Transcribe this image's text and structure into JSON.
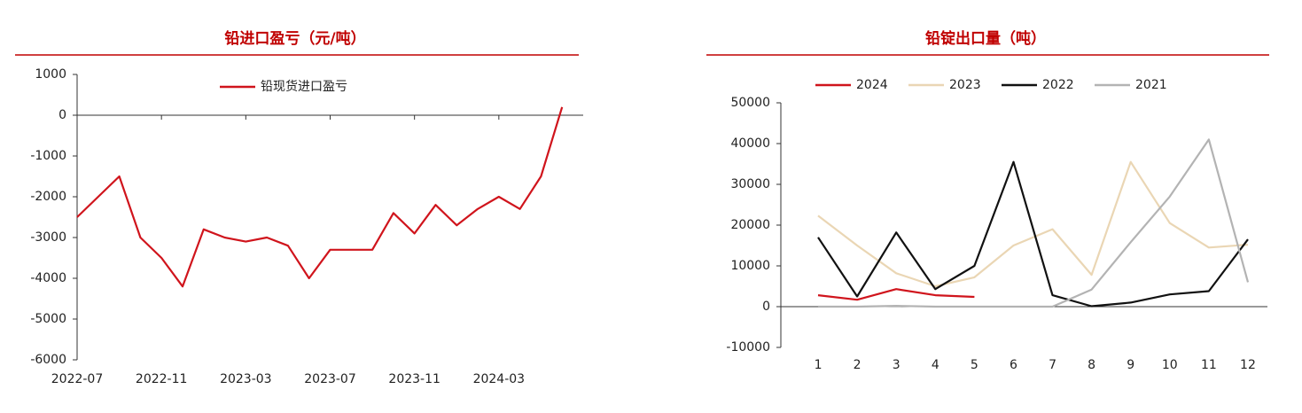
{
  "chart_data": [
    {
      "type": "line",
      "title": "铅进口盈亏（元/吨）",
      "x": [
        "2022-07",
        "2022-08",
        "2022-09",
        "2022-10",
        "2022-11",
        "2022-12",
        "2023-01",
        "2023-02",
        "2023-03",
        "2023-04",
        "2023-05",
        "2023-06",
        "2023-07",
        "2023-08",
        "2023-09",
        "2023-10",
        "2023-11",
        "2023-12",
        "2024-01",
        "2024-02",
        "2024-03",
        "2024-04",
        "2024-05",
        "2024-06"
      ],
      "series": [
        {
          "name": "铅现货进口盈亏",
          "color": "#d0141c",
          "values": [
            -2500,
            -2000,
            -1500,
            -3000,
            -3500,
            -4200,
            -2800,
            -3000,
            -3100,
            -3000,
            -3200,
            -4000,
            -3300,
            -3300,
            -3300,
            -2400,
            -2900,
            -2200,
            -2700,
            -2300,
            -2000,
            -2300,
            -1500,
            200
          ]
        }
      ],
      "xlim": [
        "2022-07",
        "2024-07"
      ],
      "xticks": [
        "2022-07",
        "2022-11",
        "2023-03",
        "2023-07",
        "2023-11",
        "2024-03"
      ],
      "ylim": [
        -6000,
        1000
      ],
      "yticks": [
        1000,
        0,
        -1000,
        -2000,
        -3000,
        -4000,
        -5000,
        -6000
      ],
      "legend": "top"
    },
    {
      "type": "line",
      "title": "铅锭出口量（吨）",
      "categories": [
        "1",
        "2",
        "3",
        "4",
        "5",
        "6",
        "7",
        "8",
        "9",
        "10",
        "11",
        "12"
      ],
      "series": [
        {
          "name": "2024",
          "color": "#d0141c",
          "values": [
            2800,
            1700,
            4300,
            2800,
            2400,
            null,
            null,
            null,
            null,
            null,
            null,
            null
          ]
        },
        {
          "name": "2023",
          "color": "#ead6b4",
          "values": [
            22300,
            15000,
            8200,
            5000,
            7200,
            15000,
            19000,
            7800,
            35500,
            20500,
            14500,
            15200
          ]
        },
        {
          "name": "2022",
          "color": "#111111",
          "values": [
            17000,
            2500,
            18200,
            4300,
            10000,
            35500,
            2800,
            100,
            1000,
            3000,
            3800,
            16500
          ]
        },
        {
          "name": "2021",
          "color": "#b3b3b3",
          "values": [
            0,
            0,
            200,
            0,
            0,
            0,
            0,
            4200,
            15800,
            27000,
            41000,
            6000
          ]
        }
      ],
      "ylim": [
        -10000,
        50000
      ],
      "yticks": [
        50000,
        40000,
        30000,
        20000,
        10000,
        0,
        -10000
      ],
      "legend": "top"
    }
  ]
}
